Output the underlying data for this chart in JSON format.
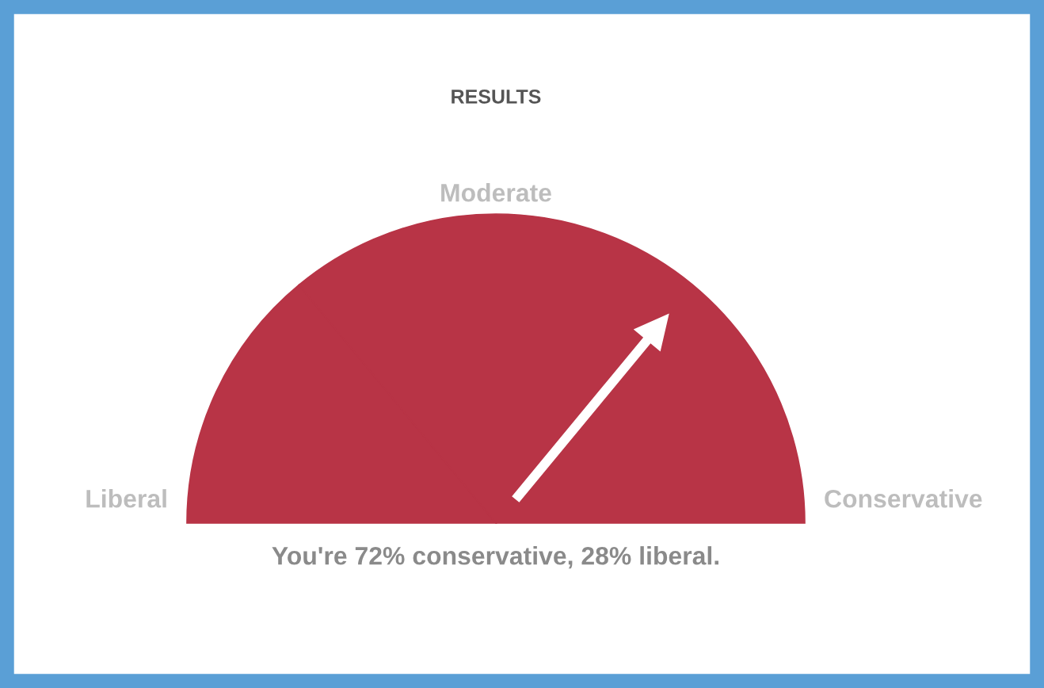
{
  "chart_data": {
    "type": "pie",
    "title": "RESULTS",
    "categories": [
      "Liberal",
      "Conservative"
    ],
    "values": [
      28,
      72
    ],
    "colors": [
      "#b83446",
      "#b83446"
    ],
    "needle": "Conservative",
    "annotations": [
      "Moderate",
      "You're 72% conservative, 28% liberal."
    ]
  }
}
